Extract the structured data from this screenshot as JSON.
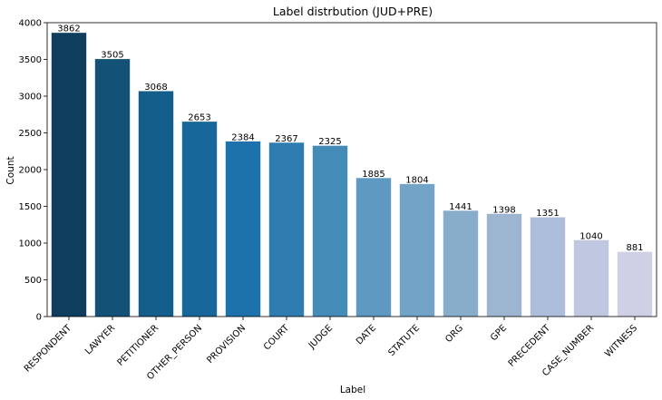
{
  "chart_data": {
    "type": "bar",
    "title": "Label distrbution (JUD+PRE)",
    "xlabel": "Label",
    "ylabel": "Count",
    "ylim": [
      0,
      4000
    ],
    "yticks": [
      0,
      500,
      1000,
      1500,
      2000,
      2500,
      3000,
      3500,
      4000
    ],
    "grid": false,
    "legend": "none",
    "categories": [
      "RESPONDENT",
      "LAWYER",
      "PETITIONER",
      "OTHER_PERSON",
      "PROVISION",
      "COURT",
      "JUDGE",
      "DATE",
      "STATUTE",
      "ORG",
      "GPE",
      "PRECEDENT",
      "CASE_NUMBER",
      "WITNESS"
    ],
    "values": [
      3862,
      3505,
      3068,
      2653,
      2384,
      2367,
      2325,
      1885,
      1804,
      1441,
      1398,
      1351,
      1040,
      881
    ],
    "colors": [
      "#0e3d5e",
      "#135276",
      "#145e8c",
      "#17679a",
      "#1d72ab",
      "#2e7cb0",
      "#448bb7",
      "#5d99c0",
      "#72a4c8",
      "#88adcb",
      "#9cb5d0",
      "#adbedb",
      "#bfc8e0",
      "#cfd0e6"
    ]
  }
}
